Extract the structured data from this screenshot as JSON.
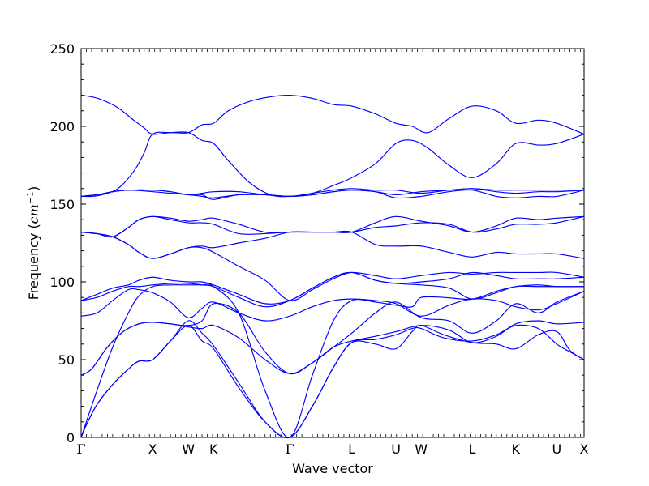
{
  "chart_data": {
    "type": "line",
    "xlabel": "Wave vector",
    "ylabel_prefix": "Frequency (",
    "ylabel_math": "cm",
    "ylabel_sup": "−1",
    "ylabel_suffix": ")",
    "ylim": [
      0,
      250
    ],
    "yticks": [
      0,
      50,
      100,
      150,
      200,
      250
    ],
    "xlim": [
      0,
      9.57
    ],
    "grid": false,
    "line_color": "#0000ff",
    "high_symmetry_points": [
      {
        "label": "Γ",
        "x": 0.0
      },
      {
        "label": "X",
        "x": 1.36
      },
      {
        "label": "W",
        "x": 2.04
      },
      {
        "label": "K",
        "x": 2.52
      },
      {
        "label": "Γ",
        "x": 3.97
      },
      {
        "label": "L",
        "x": 5.15
      },
      {
        "label": "U",
        "x": 5.99
      },
      {
        "label": "W",
        "x": 6.47
      },
      {
        "label": "L",
        "x": 7.44
      },
      {
        "label": "K",
        "x": 8.27
      },
      {
        "label": "U",
        "x": 9.05
      },
      {
        "label": "X",
        "x": 9.57
      }
    ],
    "series": [
      {
        "x": [
          0,
          0.1,
          0.3,
          0.6,
          0.9,
          1.1,
          1.36,
          1.7,
          2.04,
          2.3,
          2.52,
          3.0,
          3.5,
          3.97,
          4.4,
          4.8,
          5.15,
          5.6,
          5.99,
          6.3,
          6.47,
          6.9,
          7.44,
          7.9,
          8.27,
          8.7,
          9.05,
          9.3,
          9.57
        ],
        "y": [
          0,
          8,
          21,
          34,
          44,
          49,
          50,
          62,
          75,
          67,
          59,
          35,
          10,
          0,
          20,
          45,
          61,
          60,
          57,
          68,
          72,
          66,
          61,
          60,
          57,
          66,
          68,
          56,
          50
        ]
      },
      {
        "x": [
          0,
          0.1,
          0.3,
          0.6,
          0.9,
          1.1,
          1.36,
          1.7,
          2.04,
          2.3,
          2.52,
          3.0,
          3.5,
          3.97,
          4.4,
          4.8,
          5.15,
          5.6,
          5.99,
          6.3,
          6.47,
          6.9,
          7.44,
          7.9,
          8.27,
          8.7,
          9.05,
          9.3,
          9.57
        ],
        "y": [
          0,
          8,
          21,
          34,
          44,
          49,
          50,
          62,
          72,
          62,
          57,
          32,
          10,
          0,
          20,
          45,
          61,
          63,
          66,
          70,
          70,
          64,
          62,
          66,
          72,
          70,
          60,
          55,
          50
        ]
      },
      {
        "x": [
          0,
          0.3,
          0.6,
          0.9,
          1.1,
          1.36,
          1.7,
          2.04,
          2.3,
          2.52,
          3.0,
          3.5,
          3.97,
          4.4,
          4.8,
          5.15,
          5.6,
          5.99,
          6.3,
          6.47,
          6.9,
          7.44,
          7.9,
          8.27,
          8.7,
          9.05,
          9.57
        ],
        "y": [
          0,
          30,
          58,
          80,
          91,
          97,
          98,
          98,
          98,
          97,
          80,
          30,
          0,
          40,
          75,
          88,
          87,
          85,
          84,
          90,
          90,
          89,
          94,
          97,
          98,
          97,
          97
        ]
      },
      {
        "x": [
          0,
          0.2,
          0.5,
          0.8,
          1.1,
          1.36,
          1.7,
          2.04,
          2.3,
          2.52,
          3.0,
          3.5,
          3.97,
          4.4,
          4.8,
          5.15,
          5.6,
          5.99,
          6.47,
          7.0,
          7.44,
          7.9,
          8.27,
          8.7,
          9.05,
          9.57
        ],
        "y": [
          40,
          44,
          58,
          68,
          73,
          74,
          73,
          71,
          70,
          72,
          64,
          50,
          41,
          48,
          58,
          62,
          65,
          68,
          72,
          69,
          61,
          65,
          73,
          75,
          73,
          74
        ]
      },
      {
        "x": [
          0,
          0.2,
          0.5,
          0.8,
          1.1,
          1.36,
          1.7,
          2.04,
          2.3,
          2.52,
          3.0,
          3.5,
          3.97,
          4.4,
          4.8,
          5.15,
          5.6,
          5.99,
          6.47,
          7.0,
          7.44,
          7.9,
          8.27,
          8.7,
          9.05,
          9.57
        ],
        "y": [
          40,
          44,
          58,
          68,
          73,
          74,
          73,
          72,
          75,
          86,
          80,
          55,
          41,
          48,
          58,
          67,
          80,
          87,
          77,
          75,
          67,
          75,
          86,
          80,
          87,
          94
        ]
      },
      {
        "x": [
          0,
          0.3,
          0.6,
          0.9,
          1.1,
          1.36,
          1.7,
          2.04,
          2.3,
          2.52,
          3.0,
          3.5,
          3.97,
          4.4,
          4.8,
          5.15,
          5.6,
          5.99,
          6.47,
          7.0,
          7.44,
          7.9,
          8.27,
          8.7,
          9.05,
          9.57
        ],
        "y": [
          78,
          80,
          88,
          95,
          95,
          93,
          87,
          77,
          83,
          87,
          80,
          75,
          78,
          84,
          88,
          89,
          88,
          86,
          78,
          85,
          89,
          88,
          84,
          82,
          86,
          94
        ]
      },
      {
        "x": [
          0,
          0.3,
          0.6,
          0.9,
          1.1,
          1.36,
          1.7,
          2.04,
          2.3,
          2.52,
          3.0,
          3.5,
          3.97,
          4.4,
          4.8,
          5.15,
          5.6,
          5.99,
          6.47,
          7.0,
          7.44,
          7.9,
          8.27,
          8.7,
          9.05,
          9.57
        ],
        "y": [
          88,
          90,
          94,
          97,
          97,
          98,
          99,
          99,
          98,
          97,
          90,
          84,
          88,
          96,
          103,
          106,
          101,
          99,
          100,
          102,
          106,
          104,
          102,
          102,
          102,
          103
        ]
      },
      {
        "x": [
          0,
          0.3,
          0.6,
          0.9,
          1.1,
          1.36,
          1.7,
          2.04,
          2.3,
          2.52,
          3.0,
          3.5,
          3.97,
          4.4,
          4.8,
          5.15,
          5.6,
          5.99,
          6.47,
          7.0,
          7.44,
          7.9,
          8.27,
          8.7,
          9.05,
          9.57
        ],
        "y": [
          88,
          92,
          96,
          98,
          101,
          103,
          101,
          100,
          100,
          98,
          92,
          86,
          88,
          96,
          103,
          106,
          101,
          99,
          98,
          96,
          89,
          93,
          97,
          97,
          97,
          97
        ]
      },
      {
        "x": [
          0,
          0.3,
          0.6,
          0.9,
          1.1,
          1.36,
          1.7,
          2.04,
          2.3,
          2.52,
          3.0,
          3.5,
          3.97,
          4.4,
          4.8,
          5.15,
          5.6,
          5.99,
          6.47,
          7.0,
          7.44,
          7.9,
          8.27,
          8.7,
          9.05,
          9.57
        ],
        "y": [
          132,
          131,
          129,
          124,
          119,
          115,
          118,
          122,
          123,
          122,
          125,
          128,
          132,
          132,
          132,
          132,
          124,
          123,
          123,
          119,
          116,
          119,
          118,
          118,
          118,
          115
        ]
      },
      {
        "x": [
          0,
          0.3,
          0.6,
          0.9,
          1.1,
          1.36,
          1.7,
          2.04,
          2.3,
          2.52,
          3.0,
          3.5,
          3.97,
          4.4,
          4.8,
          5.15,
          5.6,
          5.99,
          6.47,
          7.0,
          7.44,
          7.9,
          8.27,
          8.7,
          9.05,
          9.57
        ],
        "y": [
          132,
          131,
          129,
          135,
          140,
          142,
          141,
          139,
          140,
          141,
          137,
          132,
          132,
          132,
          132,
          132,
          138,
          142,
          139,
          136,
          132,
          136,
          141,
          140,
          141,
          142
        ]
      },
      {
        "x": [
          0,
          0.3,
          0.6,
          0.9,
          1.1,
          1.36,
          1.7,
          2.04,
          2.3,
          2.52,
          3.0,
          3.5,
          3.97,
          4.4,
          4.8,
          5.15,
          5.6,
          5.99,
          6.47,
          7.0,
          7.44,
          7.9,
          8.27,
          8.7,
          9.05,
          9.57
        ],
        "y": [
          132,
          131,
          129,
          135,
          140,
          142,
          140,
          138,
          138,
          137,
          131,
          131,
          132,
          132,
          132,
          132,
          135,
          136,
          138,
          137,
          132,
          134,
          137,
          137,
          138,
          142
        ]
      },
      {
        "x": [
          0,
          0.3,
          0.6,
          0.9,
          1.1,
          1.36,
          1.7,
          2.04,
          2.3,
          2.52,
          3.0,
          3.5,
          3.97,
          4.4,
          4.8,
          5.15,
          5.6,
          5.99,
          6.47,
          7.0,
          7.44,
          7.9,
          8.27,
          8.7,
          9.05,
          9.57
        ],
        "y": [
          132,
          131,
          129,
          124,
          119,
          115,
          118,
          122,
          122,
          119,
          110,
          101,
          88,
          95,
          102,
          106,
          104,
          102,
          104,
          106,
          105,
          106,
          106,
          106,
          106,
          103
        ]
      },
      {
        "x": [
          0,
          0.3,
          0.6,
          0.9,
          1.36,
          1.7,
          2.04,
          2.3,
          2.52,
          3.0,
          3.5,
          3.97,
          4.4,
          4.8,
          5.15,
          5.6,
          5.99,
          6.47,
          7.0,
          7.44,
          7.9,
          8.27,
          8.7,
          9.05,
          9.57
        ],
        "y": [
          155,
          156,
          158,
          159,
          159,
          158,
          156,
          157,
          158,
          158,
          156,
          155,
          157,
          159,
          160,
          159,
          159,
          157,
          159,
          160,
          159,
          159,
          159,
          159,
          159
        ]
      },
      {
        "x": [
          0,
          0.3,
          0.6,
          0.9,
          1.36,
          1.7,
          2.04,
          2.3,
          2.52,
          3.0,
          3.5,
          3.97,
          4.4,
          4.8,
          5.15,
          5.6,
          5.99,
          6.47,
          7.0,
          7.44,
          7.9,
          8.27,
          8.7,
          9.05,
          9.57
        ],
        "y": [
          155,
          156,
          158,
          159,
          158,
          157,
          156,
          155,
          154,
          156,
          156,
          155,
          156,
          158,
          159,
          158,
          154,
          155,
          158,
          159,
          155,
          154,
          155,
          155,
          159
        ]
      },
      {
        "x": [
          0,
          0.3,
          0.6,
          0.9,
          1.36,
          1.7,
          2.04,
          2.3,
          2.52,
          3.0,
          3.5,
          3.97,
          4.4,
          4.8,
          5.15,
          5.6,
          5.99,
          6.47,
          7.0,
          7.44,
          7.9,
          8.27,
          8.7,
          9.05,
          9.57
        ],
        "y": [
          155,
          156,
          158,
          159,
          159,
          158,
          156,
          156,
          153,
          156,
          156,
          155,
          156,
          158,
          159,
          158,
          156,
          158,
          159,
          160,
          158,
          157,
          158,
          158,
          159
        ]
      },
      {
        "x": [
          0,
          0.2,
          0.4,
          0.7,
          1.0,
          1.2,
          1.36,
          1.7,
          2.04,
          2.3,
          2.52,
          2.8,
          3.2,
          3.6,
          3.97,
          4.4,
          4.8,
          5.15,
          5.6,
          5.99,
          6.3,
          6.6,
          7.0,
          7.44,
          7.9,
          8.27,
          8.7,
          9.05,
          9.57
        ],
        "y": [
          155,
          155,
          156,
          160,
          171,
          183,
          195,
          196,
          196,
          201,
          202,
          210,
          216,
          219,
          220,
          218,
          214,
          213,
          208,
          202,
          200,
          196,
          205,
          213,
          210,
          202,
          204,
          202,
          195
        ]
      },
      {
        "x": [
          0,
          0.2,
          0.4,
          0.7,
          1.0,
          1.2,
          1.36,
          1.7,
          2.04,
          2.3,
          2.52,
          2.8,
          3.2,
          3.6,
          3.97,
          4.4,
          4.8,
          5.15,
          5.6,
          5.99,
          6.3,
          6.6,
          7.0,
          7.44,
          7.9,
          8.27,
          8.7,
          9.05,
          9.57
        ],
        "y": [
          220,
          219,
          217,
          212,
          204,
          199,
          195,
          196,
          196,
          191,
          189,
          178,
          164,
          156,
          155,
          157,
          162,
          167,
          176,
          189,
          191,
          186,
          175,
          167,
          176,
          189,
          188,
          189,
          195
        ]
      }
    ]
  }
}
